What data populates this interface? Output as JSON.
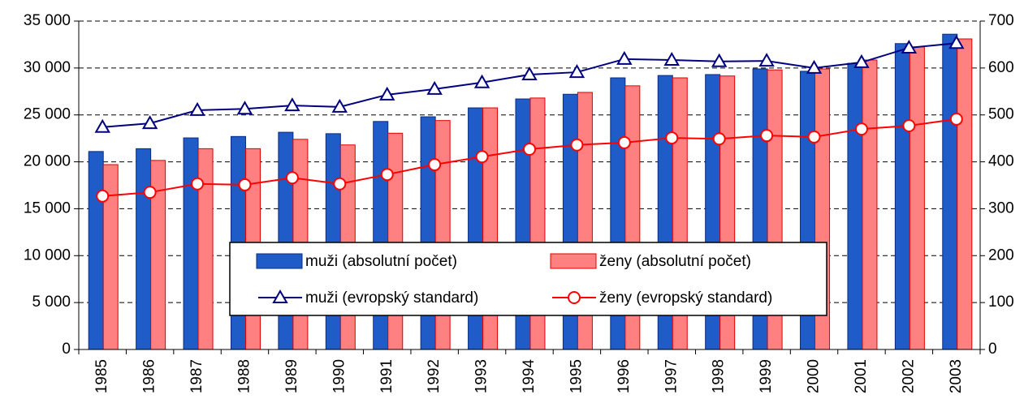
{
  "chart_data": {
    "type": "bar",
    "categories": [
      "1985",
      "1986",
      "1987",
      "1988",
      "1989",
      "1990",
      "1991",
      "1992",
      "1993",
      "1994",
      "1995",
      "1996",
      "1997",
      "1998",
      "1999",
      "2000",
      "2001",
      "2002",
      "2003"
    ],
    "series": [
      {
        "name": "muži (absolutní počet)",
        "type": "bar",
        "color": "#1f5cc8",
        "values": [
          21100,
          21400,
          22550,
          22700,
          23150,
          23000,
          24300,
          24800,
          25750,
          26700,
          27200,
          28950,
          29200,
          29300,
          29900,
          29650,
          30500,
          32600,
          33600
        ]
      },
      {
        "name": "ženy (absolutní počet)",
        "type": "bar",
        "color": "#ff8080",
        "values": [
          19700,
          20150,
          21400,
          21400,
          22400,
          21800,
          23050,
          24400,
          25750,
          26800,
          27400,
          28100,
          28950,
          29150,
          29800,
          29900,
          30850,
          32250,
          33100
        ]
      },
      {
        "name": "muži (evropský standard)",
        "type": "line",
        "axis": "y2",
        "color": "#00007f",
        "marker": "triangle",
        "values": [
          474,
          482,
          510,
          513,
          520,
          517,
          543,
          555,
          569,
          586,
          591,
          619,
          617,
          614,
          615,
          600,
          612,
          643,
          653
        ]
      },
      {
        "name": "ženy (evropský standard)",
        "type": "line",
        "axis": "y2",
        "color": "#ff0000",
        "marker": "circle",
        "values": [
          327,
          335,
          353,
          351,
          366,
          353,
          373,
          394,
          411,
          427,
          436,
          441,
          451,
          449,
          456,
          453,
          470,
          477,
          491
        ]
      }
    ],
    "ylim": [
      0,
      35000
    ],
    "yticks": [
      0,
      {
        "value": 5000,
        "label": "5 000"
      },
      {
        "value": 10000,
        "label": "10 000"
      },
      {
        "value": 15000,
        "label": "15 000"
      },
      {
        "value": 20000,
        "label": "20 000"
      },
      {
        "value": 25000,
        "label": "25 000"
      },
      {
        "value": 30000,
        "label": "30 000"
      },
      {
        "value": 35000,
        "label": "35 000"
      }
    ],
    "y2lim": [
      0,
      700
    ],
    "y2ticks": [
      0,
      100,
      200,
      300,
      400,
      500,
      600,
      700
    ],
    "grid": true
  }
}
